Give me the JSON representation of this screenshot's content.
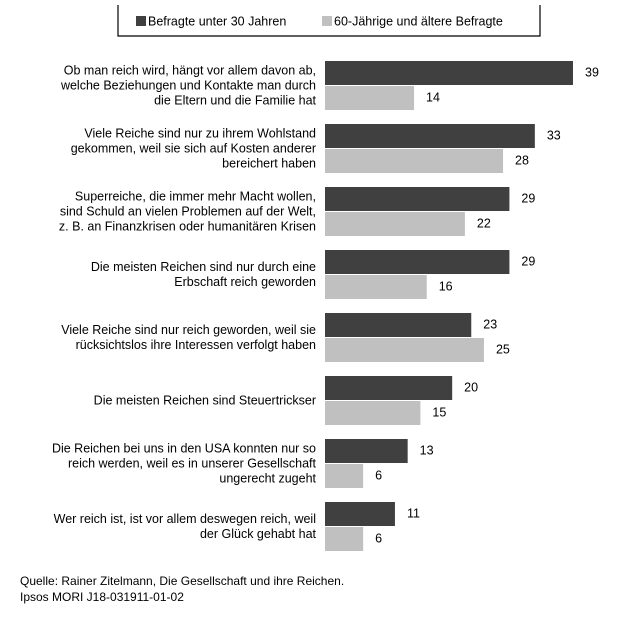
{
  "chart_data": {
    "type": "hbar",
    "categories": [
      "Ob man reich wird, hängt vor allem davon ab,\nwelche Beziehungen und Kontakte man durch\ndie Eltern und die Familie hat",
      "Viele Reiche sind nur zu ihrem Wohlstand\ngekommen, weil sie sich auf Kosten anderer\nbereichert haben",
      "Superreiche, die immer mehr Macht wollen,\nsind Schuld an vielen Problemen auf der Welt,\nz. B. an Finanzkrisen oder humanitären Krisen",
      "Die meisten Reichen sind nur durch eine\nErbschaft reich geworden",
      "Viele Reiche sind nur reich geworden, weil sie\nrücksichtslos ihre Interessen verfolgt haben",
      "Die meisten Reichen sind Steuertrickser",
      "Die Reichen bei uns in den USA konnten nur so\nreich werden, weil es in unserer Gesellschaft\nungerecht zugeht",
      "Wer reich ist, ist vor allem deswegen reich, weil\nder Glück gehabt hat"
    ],
    "series": [
      {
        "name": "Befragte unter 30 Jahren",
        "color": "#404040",
        "values": [
          39,
          33,
          29,
          29,
          23,
          20,
          13,
          11
        ]
      },
      {
        "name": "60-Jährige und ältere Befragte",
        "color": "#c0c0c0",
        "values": [
          14,
          28,
          22,
          16,
          25,
          15,
          6,
          6
        ]
      }
    ],
    "footer": [
      "Quelle: Rainer Zitelmann, Die Gesellschaft und ihre Reichen.",
      "Ipsos MORI J18-031911-01-02"
    ]
  }
}
